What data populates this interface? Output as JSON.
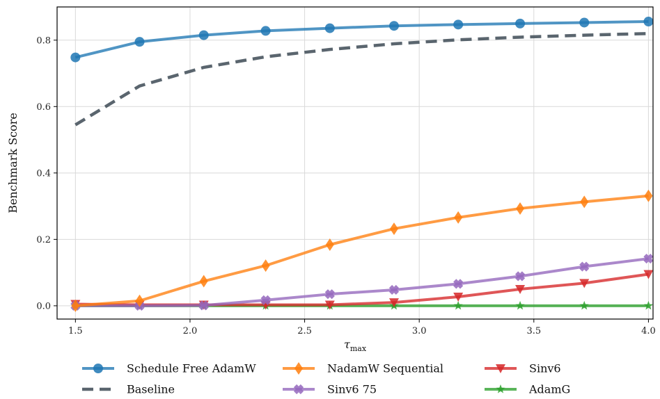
{
  "chart_data": {
    "type": "line",
    "title": "",
    "xlabel_main": "τ",
    "xlabel_sub": "max",
    "ylabel": "Benchmark Score",
    "xlim": [
      1.42,
      4.02
    ],
    "ylim": [
      -0.04,
      0.9
    ],
    "xticks": [
      1.5,
      2.0,
      2.5,
      3.0,
      3.5,
      4.0
    ],
    "xtick_labels": [
      "1.5",
      "2.0",
      "2.5",
      "3.0",
      "3.5",
      "4.0"
    ],
    "yticks": [
      0.0,
      0.2,
      0.4,
      0.6,
      0.8
    ],
    "ytick_labels": [
      "0.0",
      "0.2",
      "0.4",
      "0.6",
      "0.8"
    ],
    "grid": true,
    "legend_position": "bottom",
    "x": [
      1.5,
      1.78,
      2.06,
      2.33,
      2.61,
      2.89,
      3.17,
      3.44,
      3.72,
      4.0
    ],
    "series": [
      {
        "name": "Schedule Free AdamW",
        "color": "#1f77b4",
        "marker": "circle",
        "dash": false,
        "values": [
          0.748,
          0.795,
          0.815,
          0.828,
          0.836,
          0.843,
          0.847,
          0.85,
          0.853,
          0.856
        ]
      },
      {
        "name": "Baseline",
        "color": "#3d4a55",
        "marker": "none",
        "dash": true,
        "values": [
          0.545,
          0.662,
          0.718,
          0.75,
          0.772,
          0.789,
          0.801,
          0.809,
          0.815,
          0.82
        ]
      },
      {
        "name": "NadamW Sequential",
        "color": "#ff7f0e",
        "marker": "diamond",
        "dash": false,
        "values": [
          0.0,
          0.015,
          0.074,
          0.121,
          0.184,
          0.232,
          0.266,
          0.293,
          0.313,
          0.331
        ]
      },
      {
        "name": "Sinv6 75",
        "color": "#9467bd",
        "marker": "plus",
        "dash": false,
        "values": [
          0.0,
          0.0,
          0.001,
          0.017,
          0.035,
          0.048,
          0.066,
          0.089,
          0.118,
          0.142
        ]
      },
      {
        "name": "Sinv6",
        "color": "#d62728",
        "marker": "triangle-down",
        "dash": false,
        "values": [
          0.005,
          0.003,
          0.003,
          0.003,
          0.003,
          0.01,
          0.027,
          0.05,
          0.068,
          0.095
        ]
      },
      {
        "name": "AdamG",
        "color": "#2ca02c",
        "marker": "star",
        "dash": false,
        "values": [
          0.0,
          0.0,
          0.0,
          0.0,
          0.0,
          0.0,
          0.0,
          0.0,
          0.0,
          0.0
        ]
      }
    ]
  }
}
